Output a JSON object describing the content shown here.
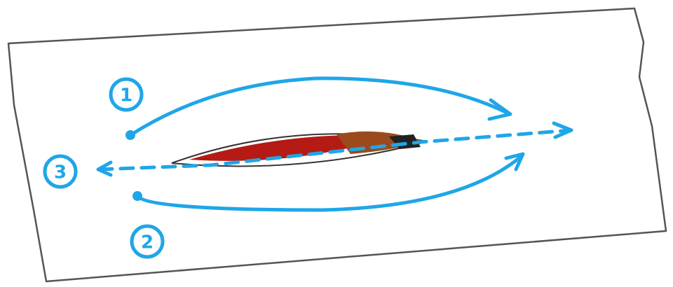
{
  "nodes": [
    {
      "label": "1"
    },
    {
      "label": "2"
    },
    {
      "label": "3"
    }
  ]
}
